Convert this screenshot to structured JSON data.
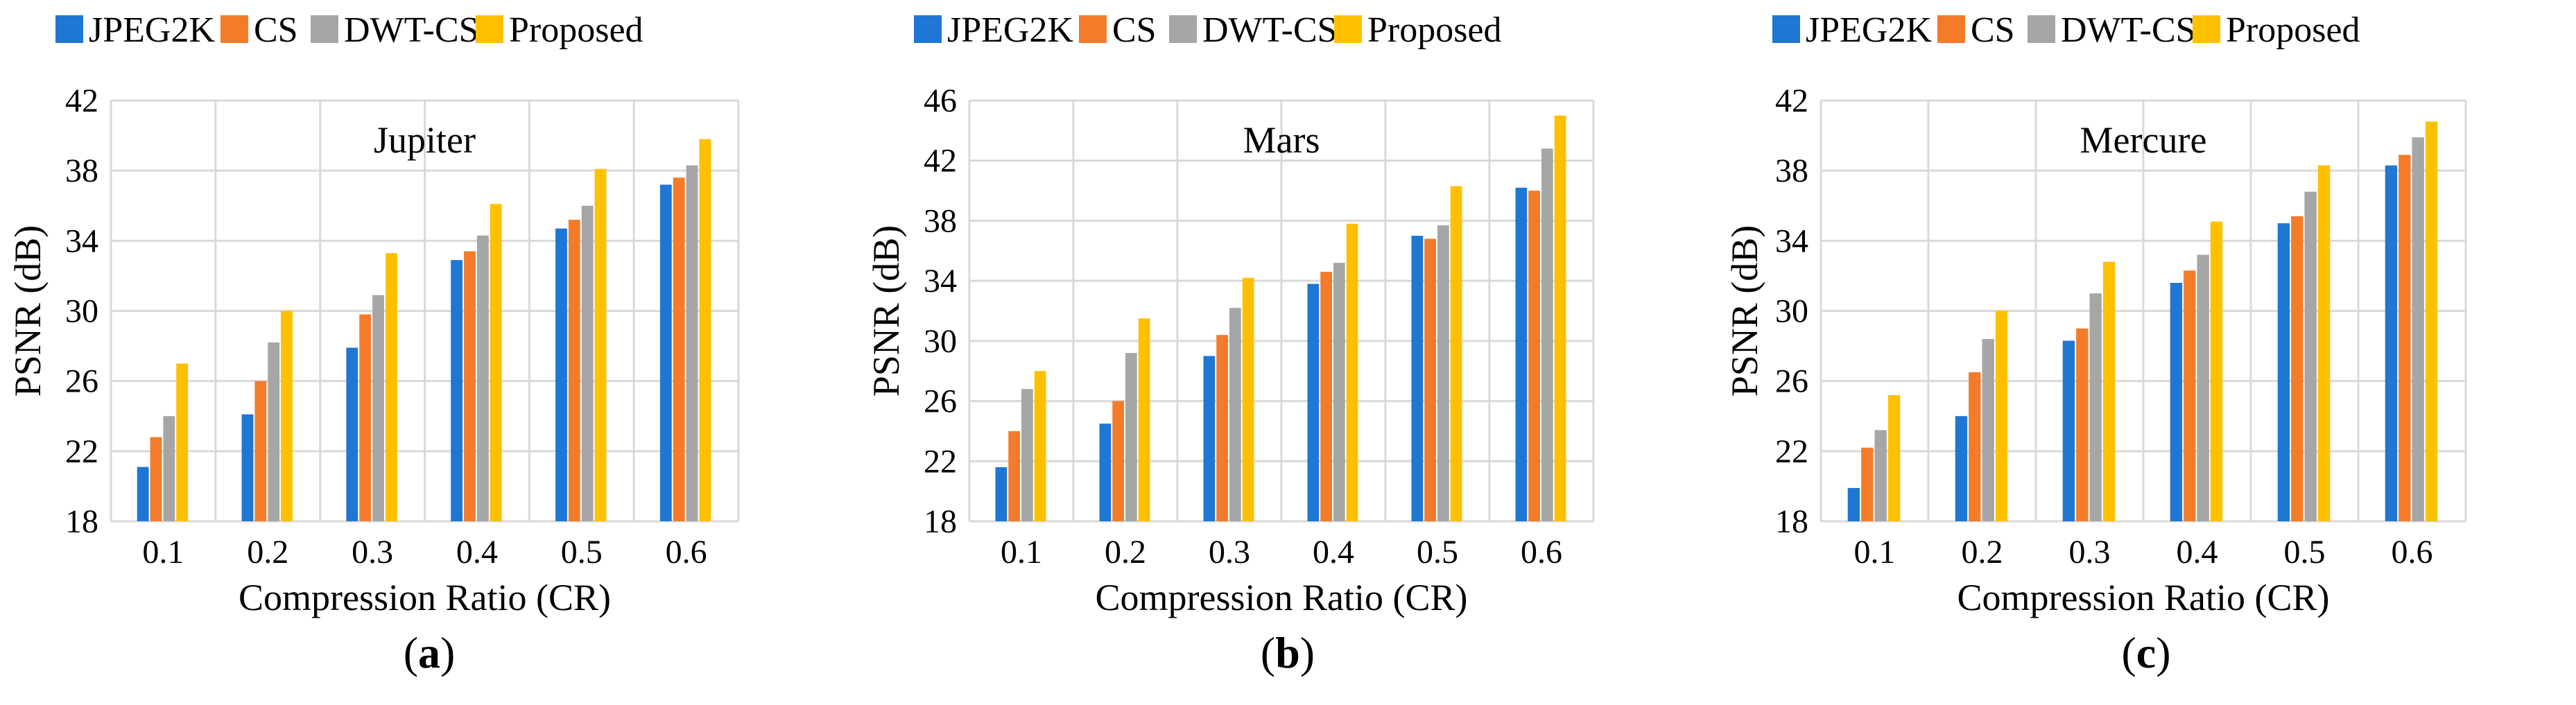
{
  "chart_data": [
    {
      "type": "bar",
      "panel": "(a)",
      "panel_letter": "a",
      "title": "Jupiter",
      "xlabel": "Compression Ratio (CR)",
      "ylabel": "PSNR (dB)",
      "ylim": [
        18,
        42
      ],
      "yticks": [
        "18",
        "22",
        "26",
        "30",
        "34",
        "38",
        "42"
      ],
      "grid": true,
      "legend": "top",
      "categories": [
        "0.1",
        "0.2",
        "0.3",
        "0.4",
        "0.5",
        "0.6"
      ],
      "series": [
        {
          "name": "JPEG2K",
          "color": "#1f77d4",
          "values": [
            21.1,
            24.1,
            27.9,
            32.9,
            34.7,
            37.2
          ]
        },
        {
          "name": "CS",
          "color": "#f47b2a",
          "values": [
            22.8,
            26.0,
            29.8,
            33.4,
            35.2,
            37.6
          ]
        },
        {
          "name": "DWT-CS",
          "color": "#a6a6a6",
          "values": [
            24.0,
            28.2,
            30.9,
            34.3,
            36.0,
            38.3
          ]
        },
        {
          "name": "Proposed",
          "color": "#ffc000",
          "values": [
            27.0,
            30.0,
            33.3,
            36.1,
            38.1,
            39.8
          ]
        }
      ]
    },
    {
      "type": "bar",
      "panel": "(b)",
      "panel_letter": "b",
      "title": "Mars",
      "xlabel": "Compression Ratio (CR)",
      "ylabel": "PSNR (dB)",
      "ylim": [
        18,
        46
      ],
      "yticks": [
        "18",
        "22",
        "26",
        "30",
        "34",
        "38",
        "42",
        "46"
      ],
      "grid": true,
      "legend": "top",
      "categories": [
        "0.1",
        "0.2",
        "0.3",
        "0.4",
        "0.5",
        "0.6"
      ],
      "series": [
        {
          "name": "JPEG2K",
          "color": "#1f77d4",
          "values": [
            21.6,
            24.5,
            29.0,
            33.8,
            37.0,
            40.2
          ]
        },
        {
          "name": "CS",
          "color": "#f47b2a",
          "values": [
            24.0,
            26.0,
            30.4,
            34.6,
            36.8,
            40.0
          ]
        },
        {
          "name": "DWT-CS",
          "color": "#a6a6a6",
          "values": [
            26.8,
            29.2,
            32.2,
            35.2,
            37.7,
            42.8
          ]
        },
        {
          "name": "Proposed",
          "color": "#ffc000",
          "values": [
            28.0,
            31.5,
            34.2,
            37.8,
            40.3,
            45.0
          ]
        }
      ]
    },
    {
      "type": "bar",
      "panel": "(c)",
      "panel_letter": "c",
      "title": "Mercure",
      "xlabel": "Compression Ratio (CR)",
      "ylabel": "PSNR (dB)",
      "ylim": [
        18,
        42
      ],
      "yticks": [
        "18",
        "22",
        "26",
        "30",
        "34",
        "38",
        "42"
      ],
      "grid": true,
      "legend": "top",
      "categories": [
        "0.1",
        "0.2",
        "0.3",
        "0.4",
        "0.5",
        "0.6"
      ],
      "series": [
        {
          "name": "JPEG2K",
          "color": "#1f77d4",
          "values": [
            19.9,
            24.0,
            28.3,
            31.6,
            35.0,
            38.3
          ]
        },
        {
          "name": "CS",
          "color": "#f47b2a",
          "values": [
            22.2,
            26.5,
            29.0,
            32.3,
            35.4,
            38.9
          ]
        },
        {
          "name": "DWT-CS",
          "color": "#a6a6a6",
          "values": [
            23.2,
            28.4,
            31.0,
            33.2,
            36.8,
            39.9
          ]
        },
        {
          "name": "Proposed",
          "color": "#ffc000",
          "values": [
            25.2,
            30.0,
            32.8,
            35.1,
            38.3,
            40.8
          ]
        }
      ]
    }
  ]
}
